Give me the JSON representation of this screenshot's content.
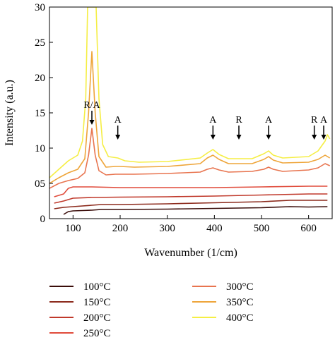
{
  "chart_data": {
    "type": "line",
    "title": "",
    "xlabel": "Wavenumber (1/cm)",
    "ylabel": "Intensity (a.u.)",
    "xlim": [
      50,
      650
    ],
    "ylim": [
      0,
      30
    ],
    "xticks": [
      100,
      200,
      300,
      400,
      500,
      600
    ],
    "yticks": [
      0,
      5,
      10,
      15,
      20,
      25,
      30
    ],
    "ytick_labels": [
      "0",
      "05",
      "10",
      "15",
      "20",
      "25",
      "30"
    ],
    "grid": false,
    "legend_position": "bottom",
    "annotations": [
      {
        "text": "R/A",
        "x": 140,
        "y": 13.3
      },
      {
        "text": "A",
        "x": 195,
        "y": 11.2
      },
      {
        "text": "A",
        "x": 397,
        "y": 11.2
      },
      {
        "text": "R",
        "x": 452,
        "y": 11.2
      },
      {
        "text": "A",
        "x": 515,
        "y": 11.2
      },
      {
        "text": "R",
        "x": 612,
        "y": 11.2
      },
      {
        "text": "A",
        "x": 632,
        "y": 11.2
      }
    ],
    "series": [
      {
        "name": "100°C",
        "color": "#3a0d0a",
        "x": [
          80,
          90,
          100,
          120,
          140,
          160,
          200,
          300,
          400,
          500,
          560,
          600,
          640
        ],
        "y": [
          0.6,
          1.0,
          1.1,
          1.15,
          1.2,
          1.3,
          1.3,
          1.35,
          1.45,
          1.55,
          1.7,
          1.65,
          1.7
        ]
      },
      {
        "name": "150°C",
        "color": "#8c2a1c",
        "x": [
          60,
          80,
          100,
          140,
          160,
          200,
          300,
          400,
          500,
          560,
          600,
          640
        ],
        "y": [
          1.4,
          1.6,
          1.7,
          1.9,
          2.0,
          2.0,
          2.1,
          2.25,
          2.4,
          2.6,
          2.6,
          2.6
        ]
      },
      {
        "name": "200°C",
        "color": "#c0392b",
        "x": [
          60,
          80,
          100,
          140,
          200,
          300,
          400,
          500,
          600,
          640
        ],
        "y": [
          2.2,
          2.5,
          2.9,
          3.0,
          3.05,
          3.1,
          3.2,
          3.35,
          3.5,
          3.5
        ]
      },
      {
        "name": "250°C",
        "color": "#e04a3a",
        "x": [
          60,
          80,
          90,
          100,
          140,
          200,
          300,
          400,
          500,
          600,
          640
        ],
        "y": [
          3.1,
          3.5,
          4.3,
          4.5,
          4.5,
          4.4,
          4.4,
          4.4,
          4.5,
          4.6,
          4.6
        ]
      },
      {
        "name": "300°C",
        "color": "#e8744f",
        "x": [
          50,
          70,
          90,
          110,
          125,
          133,
          140,
          147,
          155,
          170,
          190,
          200,
          230,
          300,
          370,
          385,
          397,
          410,
          430,
          480,
          505,
          515,
          525,
          545,
          600,
          620,
          635,
          645
        ],
        "y": [
          4.3,
          5.0,
          5.4,
          5.7,
          6.5,
          9.0,
          12.8,
          9.0,
          6.8,
          6.2,
          6.3,
          6.3,
          6.3,
          6.4,
          6.6,
          7.0,
          7.2,
          6.9,
          6.6,
          6.7,
          7.0,
          7.3,
          7.0,
          6.7,
          6.9,
          7.2,
          7.8,
          7.5
        ]
      },
      {
        "name": "350°C",
        "color": "#eea53a",
        "x": [
          50,
          70,
          90,
          110,
          125,
          133,
          140,
          147,
          155,
          170,
          190,
          200,
          230,
          300,
          370,
          385,
          397,
          410,
          430,
          480,
          505,
          515,
          525,
          545,
          600,
          620,
          635,
          645
        ],
        "y": [
          5.0,
          5.8,
          6.5,
          7.0,
          8.5,
          15.0,
          23.7,
          15.0,
          8.8,
          7.3,
          7.4,
          7.4,
          7.3,
          7.4,
          7.8,
          8.6,
          9.0,
          8.4,
          7.8,
          7.8,
          8.4,
          8.8,
          8.3,
          7.9,
          8.0,
          8.4,
          9.0,
          8.6
        ]
      },
      {
        "name": "400°C",
        "color": "#f5ee44",
        "x": [
          50,
          70,
          90,
          110,
          120,
          127,
          131,
          135,
          145,
          149,
          155,
          163,
          175,
          195,
          210,
          240,
          300,
          370,
          385,
          397,
          410,
          430,
          480,
          505,
          515,
          525,
          545,
          600,
          620,
          635,
          640,
          645
        ],
        "y": [
          5.8,
          7.0,
          8.2,
          9.0,
          11.0,
          17.0,
          30.0,
          30.0,
          30.0,
          30.0,
          17.0,
          10.5,
          8.8,
          8.6,
          8.2,
          8.0,
          8.1,
          8.6,
          9.3,
          9.8,
          9.1,
          8.5,
          8.5,
          9.2,
          9.6,
          9.0,
          8.6,
          8.8,
          9.6,
          11.0,
          11.9,
          11.3
        ]
      }
    ]
  }
}
